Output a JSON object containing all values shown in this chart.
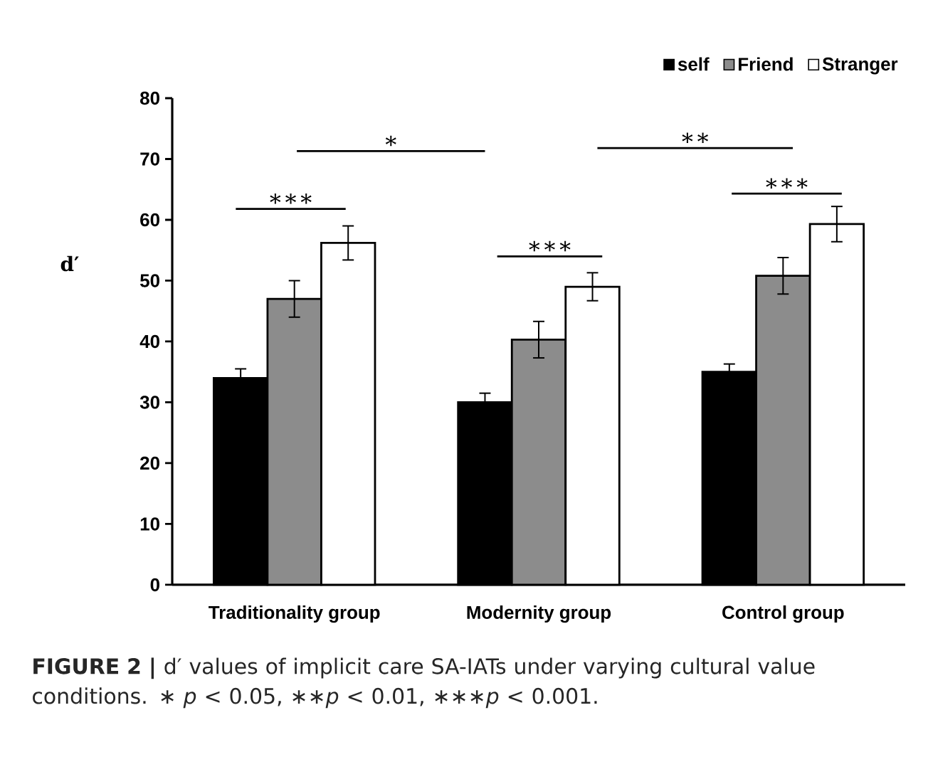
{
  "chart_data": {
    "type": "bar",
    "ylabel": "d′",
    "categories": [
      "Traditionality group",
      "Modernity group",
      "Control group"
    ],
    "series": [
      {
        "name": "self",
        "color": "#000000",
        "values": [
          34,
          30,
          35
        ],
        "errors": [
          1.5,
          1.5,
          1.3
        ]
      },
      {
        "name": "Friend",
        "color": "#8c8c8c",
        "values": [
          47,
          40.3,
          50.8
        ],
        "errors": [
          3,
          3,
          3
        ]
      },
      {
        "name": "Stranger",
        "color": "#ffffff",
        "values": [
          56.2,
          49,
          59.3
        ],
        "errors": [
          2.8,
          2.3,
          2.9
        ]
      }
    ],
    "ylim": [
      0,
      80
    ],
    "yticks": [
      0,
      10,
      20,
      30,
      40,
      50,
      60,
      70,
      80
    ],
    "legend": "top right",
    "grid": false,
    "annotations": [
      "∗∗∗",
      "∗",
      "∗∗∗",
      "∗∗",
      "∗∗∗",
      "**FIGURE 2 |** d′ values of implicit care SA-IATs under varying cultural value conditions. ∗ *p* < 0.05, ∗∗*p* < 0.01, ∗∗∗*p* < 0.001."
    ]
  }
}
